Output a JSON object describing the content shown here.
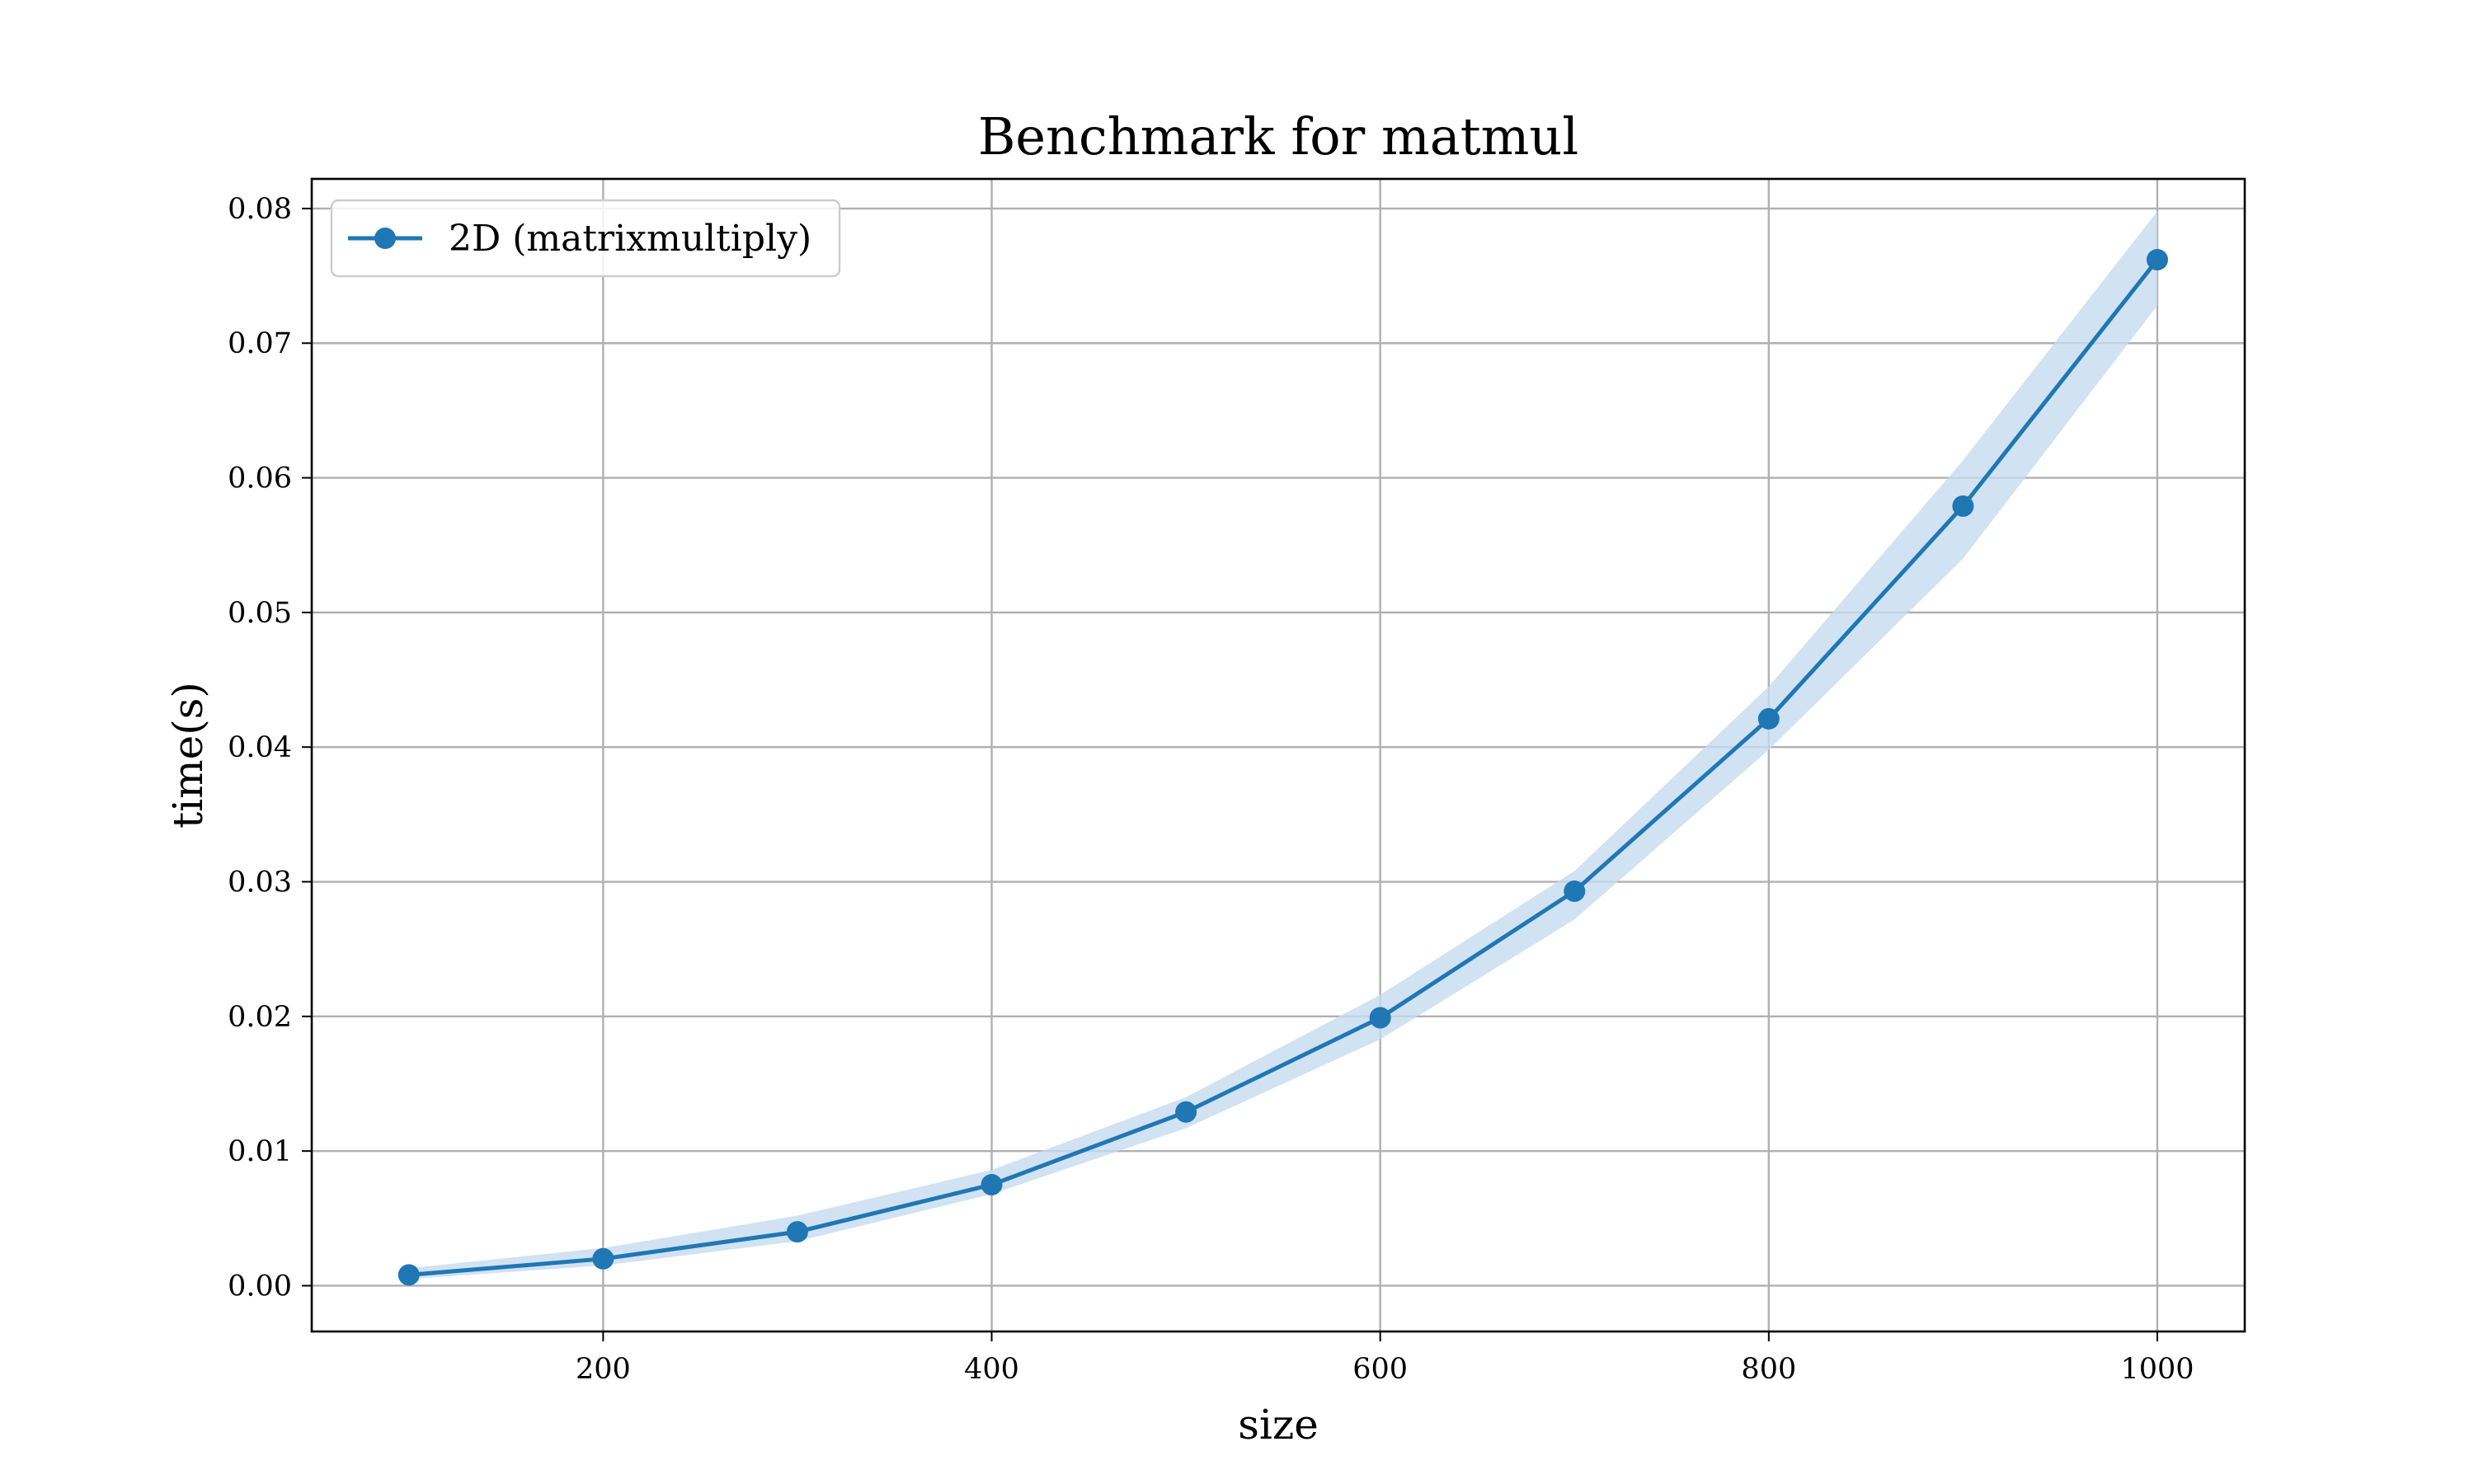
{
  "chart_data": {
    "type": "line",
    "title": "Benchmark for matmul",
    "xlabel": "size",
    "ylabel": "time(s)",
    "xlim": [
      50,
      1045
    ],
    "ylim": [
      -0.0034,
      0.0822
    ],
    "grid": true,
    "legend_position": "top-left",
    "x_ticks": [
      200,
      400,
      600,
      800,
      1000
    ],
    "x_tick_labels": [
      "200",
      "400",
      "600",
      "800",
      "1000"
    ],
    "y_ticks": [
      0.0,
      0.01,
      0.02,
      0.03,
      0.04,
      0.05,
      0.06,
      0.07,
      0.08
    ],
    "y_tick_labels": [
      "0.00",
      "0.01",
      "0.02",
      "0.03",
      "0.04",
      "0.05",
      "0.06",
      "0.07",
      "0.08"
    ],
    "x": [
      100,
      200,
      300,
      400,
      500,
      600,
      700,
      800,
      900,
      1000
    ],
    "series": [
      {
        "name": "2D (matrixmultiply)",
        "color": "#1f77b4",
        "band_color": "#c6dbef",
        "values": [
          0.0008,
          0.002,
          0.004,
          0.0075,
          0.0129,
          0.0199,
          0.0293,
          0.0421,
          0.0579,
          0.0762
        ],
        "band_upper": [
          0.0013,
          0.0028,
          0.0052,
          0.0086,
          0.014,
          0.0216,
          0.0308,
          0.0445,
          0.0613,
          0.0798
        ],
        "band_lower": [
          0.0005,
          0.0015,
          0.0033,
          0.0068,
          0.0117,
          0.0183,
          0.0272,
          0.0398,
          0.054,
          0.0728
        ]
      }
    ]
  }
}
